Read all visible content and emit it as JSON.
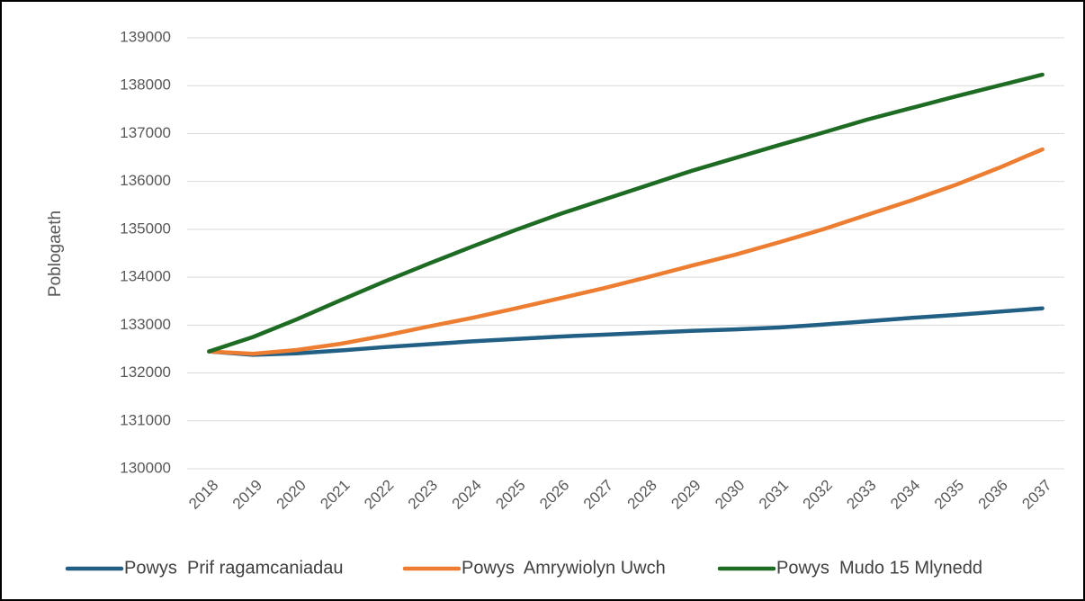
{
  "chart_data": {
    "type": "line",
    "y_label": "Poblogaeth",
    "categories": [
      "2018",
      "2019",
      "2020",
      "2021",
      "2022",
      "2023",
      "2024",
      "2025",
      "2026",
      "2027",
      "2028",
      "2029",
      "2030",
      "2031",
      "2032",
      "2033",
      "2034",
      "2035",
      "2036",
      "2037"
    ],
    "series": [
      {
        "name": "Powys  Prif ragamcaniadau",
        "color": "#215f84",
        "values": [
          132450,
          132380,
          132410,
          132470,
          132540,
          132600,
          132660,
          132710,
          132760,
          132800,
          132840,
          132880,
          132910,
          132950,
          133010,
          133080,
          133150,
          133210,
          133280,
          133350
        ]
      },
      {
        "name": "Powys  Amrywiolyn Uwch",
        "color": "#ed7d31",
        "values": [
          132450,
          132400,
          132480,
          132610,
          132780,
          132970,
          133150,
          133350,
          133560,
          133770,
          134000,
          134240,
          134470,
          134730,
          135000,
          135300,
          135600,
          135920,
          136280,
          136670
        ]
      },
      {
        "name": "Powys  Mudo 15 Mlynedd",
        "color": "#1e6b24",
        "values": [
          132450,
          132750,
          133120,
          133520,
          133910,
          134280,
          134640,
          134990,
          135320,
          135620,
          135920,
          136220,
          136490,
          136760,
          137020,
          137290,
          137530,
          137770,
          138000,
          138230
        ]
      }
    ],
    "ylim": [
      130000,
      139000
    ],
    "yticks": [
      130000,
      131000,
      132000,
      133000,
      134000,
      135000,
      136000,
      137000,
      138000,
      139000
    ],
    "grid": true,
    "legend": "bottom"
  }
}
